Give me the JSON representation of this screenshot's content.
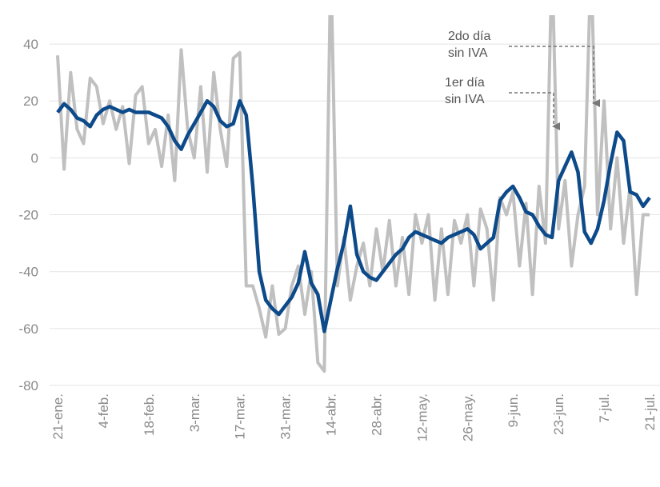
{
  "chart_data": {
    "type": "line",
    "categories": [
      "21-ene.",
      null,
      null,
      null,
      null,
      null,
      null,
      "4-feb.",
      null,
      null,
      null,
      null,
      null,
      null,
      "18-feb.",
      null,
      null,
      null,
      null,
      null,
      null,
      "3-mar.",
      null,
      null,
      null,
      null,
      null,
      null,
      "17-mar.",
      null,
      null,
      null,
      null,
      null,
      null,
      "31-mar.",
      null,
      null,
      null,
      null,
      null,
      null,
      "14-abr.",
      null,
      null,
      null,
      null,
      null,
      null,
      "28-abr.",
      null,
      null,
      null,
      null,
      null,
      null,
      "12-may.",
      null,
      null,
      null,
      null,
      null,
      null,
      "26-may.",
      null,
      null,
      null,
      null,
      null,
      null,
      "9-jun.",
      null,
      null,
      null,
      null,
      null,
      null,
      "23-jun.",
      null,
      null,
      null,
      null,
      null,
      null,
      "7-jul.",
      null,
      null,
      null,
      null,
      null,
      null,
      "21-jul."
    ],
    "series": [
      {
        "color": "#c0c0c0",
        "values": [
          36,
          -4,
          30,
          10,
          5,
          28,
          25,
          12,
          20,
          10,
          18,
          -2,
          22,
          25,
          5,
          10,
          -3,
          15,
          -8,
          38,
          10,
          0,
          25,
          -5,
          30,
          10,
          -3,
          35,
          37,
          -45,
          -45,
          -53,
          -63,
          -45,
          -62,
          -60,
          -45,
          -38,
          -55,
          -40,
          -72,
          -75,
          70,
          -45,
          -28,
          -50,
          -38,
          -30,
          -45,
          -25,
          -40,
          -22,
          -45,
          -28,
          -48,
          -20,
          -30,
          -20,
          -50,
          -25,
          -48,
          -22,
          -30,
          -20,
          -45,
          -18,
          -25,
          -50,
          -14,
          -20,
          -12,
          -38,
          -16,
          -48,
          -10,
          -30,
          70,
          -25,
          -8,
          -38,
          -20,
          -10,
          70,
          -20,
          20,
          -25,
          0,
          -30,
          -10,
          -48,
          -20,
          -20
        ]
      },
      {
        "color": "#0d4a8a",
        "values": [
          16,
          19,
          17,
          14,
          13,
          11,
          15,
          17,
          18,
          17,
          16,
          17,
          16,
          16,
          16,
          15,
          14,
          11,
          6,
          3,
          8,
          12,
          16,
          20,
          18,
          13,
          11,
          12,
          20,
          15,
          -10,
          -40,
          -50,
          -53,
          -55,
          -52,
          -49,
          -44,
          -33,
          -44,
          -48,
          -61,
          -50,
          -39,
          -30,
          -17,
          -34,
          -40,
          -42,
          -43,
          -40,
          -37,
          -34,
          -32,
          -28,
          -26,
          -27,
          -28,
          -29,
          -30,
          -28,
          -27,
          -26,
          -25,
          -27,
          -32,
          -30,
          -28,
          -15,
          -12,
          -10,
          -14,
          -19,
          -20,
          -24,
          -27,
          -28,
          -8,
          -3,
          2,
          -5,
          -26,
          -30,
          -25,
          -15,
          -2,
          9,
          6,
          -12,
          -13,
          -17,
          -14
        ]
      }
    ],
    "ylim": [
      -80,
      50
    ],
    "yticks": [
      -80,
      -60,
      -40,
      -20,
      0,
      20,
      40
    ],
    "grid": true,
    "annotations": [
      {
        "line1": "1er día",
        "line2": "sin IVA"
      },
      {
        "line1": "2do día",
        "line2": "sin IVA"
      }
    ]
  }
}
